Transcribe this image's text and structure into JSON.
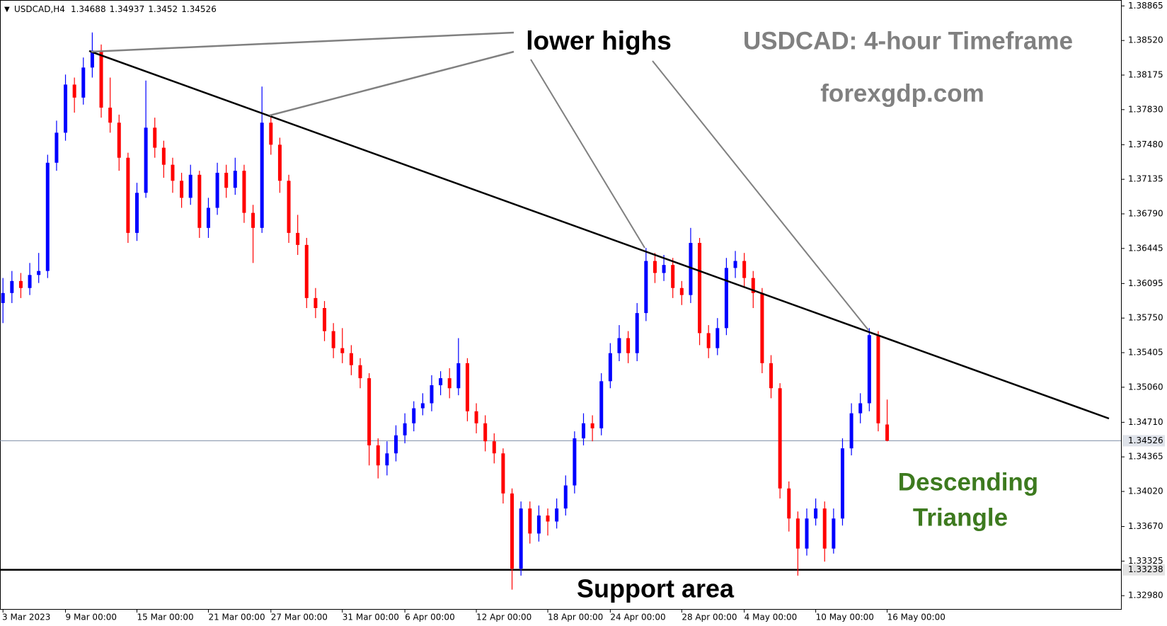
{
  "chart_data": {
    "type": "candlestick",
    "symbol": "USDCAD,H4",
    "title": "USDCAD: 4-hour Timeframe",
    "subtitle": "forexgdp.com",
    "annotations": {
      "highs": "lower highs",
      "pattern": [
        "Descending",
        "Triangle"
      ],
      "support": "Support area"
    },
    "bull_color": "#0000ff",
    "bear_color": "#ff0000",
    "current_price": 1.34526,
    "support_level": 1.33238,
    "ylim": [
      1.32847,
      1.38924
    ],
    "yticks": [
      1.38865,
      {
        "value": 1.3852,
        "label": "1.38520"
      },
      1.38175,
      {
        "value": 1.3783,
        "label": "1.37830"
      },
      {
        "value": 1.3748,
        "label": "1.37480"
      },
      1.37135,
      {
        "value": 1.3679,
        "label": "1.36790"
      },
      1.36445,
      1.36095,
      {
        "value": 1.3575,
        "label": "1.35750"
      },
      1.35405,
      {
        "value": 1.3506,
        "label": "1.35060"
      },
      {
        "value": 1.3471,
        "label": "1.34710"
      },
      1.34365,
      {
        "value": 1.3402,
        "label": "1.34020"
      },
      {
        "value": 1.3367,
        "label": "1.33670"
      },
      1.33325,
      {
        "value": 1.3298,
        "label": "1.32980"
      }
    ],
    "categories": [
      "3 Mar 2023",
      null,
      null,
      null,
      null,
      null,
      null,
      "9 Mar 00:00",
      null,
      null,
      null,
      null,
      null,
      null,
      null,
      "15 Mar 00:00",
      null,
      null,
      null,
      null,
      null,
      null,
      null,
      "21 Mar 00:00",
      null,
      null,
      null,
      null,
      null,
      null,
      "27 Mar 00:00",
      null,
      null,
      null,
      null,
      null,
      null,
      null,
      "31 Mar 00:00",
      null,
      null,
      null,
      null,
      null,
      null,
      "6 Apr 00:00",
      null,
      null,
      null,
      null,
      null,
      null,
      null,
      "12 Apr 00:00",
      null,
      null,
      null,
      null,
      null,
      null,
      null,
      "18 Apr 00:00",
      null,
      null,
      null,
      null,
      null,
      null,
      "24 Apr 00:00",
      null,
      null,
      null,
      null,
      null,
      null,
      null,
      "28 Apr 00:00",
      null,
      null,
      null,
      null,
      null,
      null,
      "4 May 00:00",
      null,
      null,
      null,
      null,
      null,
      null,
      null,
      "10 May 00:00",
      null,
      null,
      null,
      null,
      null,
      null,
      null,
      "16 May 00:00"
    ],
    "open": [
      1.359,
      1.36,
      1.3612,
      1.3605,
      1.3618,
      1.3622,
      1.373,
      1.376,
      1.3808,
      1.3795,
      1.3825,
      1.3842,
      1.3785,
      1.377,
      1.3735,
      1.366,
      1.37,
      1.3765,
      1.3745,
      1.3728,
      1.3712,
      1.3695,
      1.3718,
      1.3665,
      1.3685,
      1.372,
      1.3705,
      1.3722,
      1.368,
      1.3665,
      1.377,
      1.3748,
      1.3712,
      1.366,
      1.3648,
      1.3595,
      1.3585,
      1.3562,
      1.3545,
      1.354,
      1.3528,
      1.3515,
      1.3448,
      1.3428,
      1.344,
      1.3458,
      1.347,
      1.3485,
      1.349,
      1.3508,
      1.3515,
      1.3505,
      1.353,
      1.3482,
      1.347,
      1.3452,
      1.344,
      1.34,
      1.3325,
      1.3385,
      1.336,
      1.3378,
      1.3372,
      1.3385,
      1.3408,
      1.3455,
      1.347,
      1.3465,
      1.3512,
      1.354,
      1.3555,
      1.354,
      1.358,
      1.3632,
      1.362,
      1.3628,
      1.3605,
      1.3598,
      1.365,
      1.356,
      1.3545,
      1.3565,
      1.3625,
      1.3632,
      1.3615,
      1.36,
      1.353,
      1.3505,
      1.3405,
      1.3375,
      1.3345,
      1.3375,
      1.3385,
      1.3345,
      1.3375,
      1.3445,
      1.348,
      1.349,
      1.3558,
      1.34688
    ],
    "high": [
      1.3615,
      1.3622,
      1.362,
      1.363,
      1.364,
      1.3738,
      1.3772,
      1.3818,
      1.3815,
      1.3835,
      1.386,
      1.3848,
      1.3815,
      1.3778,
      1.374,
      1.371,
      1.3812,
      1.3775,
      1.3752,
      1.3735,
      1.372,
      1.3728,
      1.3722,
      1.3695,
      1.373,
      1.3728,
      1.3735,
      1.3728,
      1.3688,
      1.3806,
      1.3778,
      1.3755,
      1.3718,
      1.3678,
      1.3655,
      1.3605,
      1.3592,
      1.357,
      1.3565,
      1.3548,
      1.3535,
      1.352,
      1.3455,
      1.3452,
      1.3468,
      1.348,
      1.3492,
      1.35,
      1.3518,
      1.3522,
      1.3525,
      1.3555,
      1.3535,
      1.349,
      1.3478,
      1.346,
      1.3445,
      1.3405,
      1.3392,
      1.3392,
      1.3388,
      1.3385,
      1.3395,
      1.3418,
      1.3462,
      1.348,
      1.3478,
      1.352,
      1.355,
      1.3568,
      1.3562,
      1.359,
      1.3645,
      1.364,
      1.3638,
      1.3635,
      1.3612,
      1.3665,
      1.3655,
      1.3568,
      1.3575,
      1.3635,
      1.3642,
      1.364,
      1.3622,
      1.3605,
      1.3538,
      1.351,
      1.3412,
      1.3382,
      1.3385,
      1.3395,
      1.3392,
      1.3385,
      1.3455,
      1.349,
      1.35,
      1.3565,
      1.3562,
      1.34937
    ],
    "low": [
      1.357,
      1.359,
      1.3595,
      1.3598,
      1.361,
      1.3615,
      1.3722,
      1.3752,
      1.378,
      1.3788,
      1.3815,
      1.3775,
      1.376,
      1.3722,
      1.365,
      1.3652,
      1.3695,
      1.3735,
      1.3715,
      1.37,
      1.3685,
      1.3688,
      1.3655,
      1.3655,
      1.3678,
      1.3695,
      1.3698,
      1.367,
      1.363,
      1.366,
      1.3738,
      1.37,
      1.365,
      1.3638,
      1.3585,
      1.3575,
      1.3552,
      1.3535,
      1.353,
      1.3518,
      1.3505,
      1.3428,
      1.3415,
      1.3418,
      1.3432,
      1.345,
      1.3462,
      1.3478,
      1.3482,
      1.3498,
      1.3495,
      1.3498,
      1.3472,
      1.346,
      1.3442,
      1.343,
      1.339,
      1.3304,
      1.3318,
      1.335,
      1.3352,
      1.3358,
      1.3365,
      1.3378,
      1.34,
      1.3448,
      1.3452,
      1.3458,
      1.3505,
      1.3532,
      1.353,
      1.3532,
      1.3572,
      1.361,
      1.3612,
      1.3595,
      1.3588,
      1.359,
      1.3548,
      1.3535,
      1.3538,
      1.3558,
      1.3615,
      1.3605,
      1.3585,
      1.352,
      1.3495,
      1.3395,
      1.3362,
      1.3318,
      1.3338,
      1.3368,
      1.3332,
      1.334,
      1.3368,
      1.3438,
      1.347,
      1.3482,
      1.3462,
      1.3452
    ],
    "close": [
      1.36,
      1.3612,
      1.3605,
      1.3618,
      1.3622,
      1.373,
      1.376,
      1.3808,
      1.3795,
      1.3825,
      1.3842,
      1.3785,
      1.377,
      1.3735,
      1.366,
      1.37,
      1.3765,
      1.3745,
      1.3728,
      1.3712,
      1.3695,
      1.3718,
      1.3665,
      1.3685,
      1.372,
      1.3705,
      1.3722,
      1.368,
      1.3665,
      1.377,
      1.3748,
      1.3712,
      1.366,
      1.3648,
      1.3595,
      1.3585,
      1.3562,
      1.3545,
      1.354,
      1.3528,
      1.3515,
      1.3448,
      1.3428,
      1.344,
      1.3458,
      1.347,
      1.3485,
      1.349,
      1.3508,
      1.3515,
      1.3505,
      1.353,
      1.3482,
      1.347,
      1.3452,
      1.344,
      1.34,
      1.3325,
      1.3385,
      1.336,
      1.3378,
      1.3372,
      1.3385,
      1.3408,
      1.3455,
      1.347,
      1.3465,
      1.3512,
      1.354,
      1.3555,
      1.354,
      1.358,
      1.3632,
      1.362,
      1.3628,
      1.3605,
      1.3598,
      1.365,
      1.356,
      1.3545,
      1.3565,
      1.3625,
      1.3632,
      1.3615,
      1.36,
      1.353,
      1.3505,
      1.3405,
      1.3375,
      1.3345,
      1.3375,
      1.3385,
      1.3345,
      1.3375,
      1.3445,
      1.348,
      1.349,
      1.3558,
      1.347,
      1.34526
    ]
  }
}
